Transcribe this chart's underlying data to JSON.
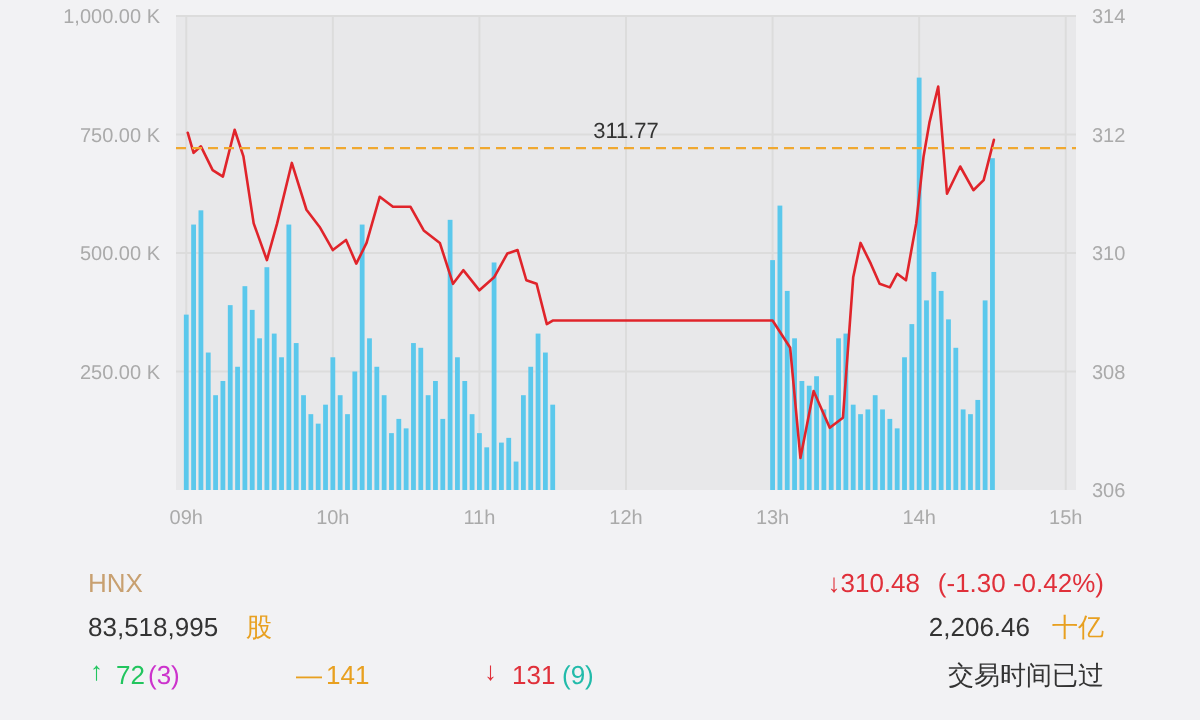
{
  "chart_data": {
    "type": "bar",
    "xlim": [
      8.93,
      15.07
    ],
    "xticks": [
      {
        "value": 9,
        "label": "09h"
      },
      {
        "value": 10,
        "label": "10h"
      },
      {
        "value": 11,
        "label": "11h"
      },
      {
        "value": 12,
        "label": "12h"
      },
      {
        "value": 13,
        "label": "13h"
      },
      {
        "value": 14,
        "label": "14h"
      },
      {
        "value": 15,
        "label": "15h"
      }
    ],
    "ylim": [
      0,
      1000
    ],
    "yticks": [
      {
        "value": 250,
        "label": "250.00 K"
      },
      {
        "value": 500,
        "label": "500.00 K"
      },
      {
        "value": 750,
        "label": "750.00 K"
      },
      {
        "value": 1000,
        "label": "1,000.00 K"
      }
    ],
    "y2lim": [
      306,
      314
    ],
    "y2ticks": [
      306,
      308,
      310,
      312,
      314
    ],
    "grid": true,
    "series": [
      {
        "color": "#5bc8ec",
        "x": [
          9.0,
          9.05,
          9.1,
          9.15,
          9.2,
          9.25,
          9.3,
          9.35,
          9.4,
          9.45,
          9.5,
          9.55,
          9.6,
          9.65,
          9.7,
          9.75,
          9.8,
          9.85,
          9.9,
          9.95,
          10.0,
          10.05,
          10.1,
          10.15,
          10.2,
          10.25,
          10.3,
          10.35,
          10.4,
          10.45,
          10.5,
          10.55,
          10.6,
          10.65,
          10.7,
          10.75,
          10.8,
          10.85,
          10.9,
          10.95,
          11.0,
          11.05,
          11.1,
          11.15,
          11.2,
          11.25,
          11.3,
          11.35,
          11.4,
          11.45,
          11.5,
          13.0,
          13.05,
          13.1,
          13.15,
          13.2,
          13.25,
          13.3,
          13.35,
          13.4,
          13.45,
          13.5,
          13.55,
          13.6,
          13.65,
          13.7,
          13.75,
          13.8,
          13.85,
          13.9,
          13.95,
          14.0,
          14.05,
          14.1,
          14.15,
          14.2,
          14.25,
          14.3,
          14.35,
          14.4,
          14.45,
          14.5
        ],
        "values": [
          370,
          560,
          590,
          290,
          200,
          230,
          390,
          260,
          430,
          380,
          320,
          470,
          330,
          280,
          560,
          310,
          200,
          160,
          140,
          180,
          280,
          200,
          160,
          250,
          560,
          320,
          260,
          200,
          120,
          150,
          130,
          310,
          300,
          200,
          230,
          150,
          570,
          280,
          230,
          160,
          120,
          90,
          480,
          100,
          110,
          60,
          200,
          260,
          330,
          290,
          180,
          485,
          600,
          420,
          320,
          230,
          220,
          240,
          170,
          200,
          320,
          330,
          180,
          160,
          170,
          200,
          170,
          150,
          130,
          280,
          350,
          870,
          400,
          460,
          420,
          360,
          300,
          170,
          160,
          190,
          400,
          700
        ]
      },
      {
        "type": "line",
        "axis": "y2",
        "color": "#e0242b",
        "x": [
          9.01,
          9.05,
          9.1,
          9.18,
          9.25,
          9.33,
          9.39,
          9.46,
          9.55,
          9.62,
          9.72,
          9.82,
          9.91,
          10.0,
          10.09,
          10.16,
          10.23,
          10.32,
          10.41,
          10.53,
          10.62,
          10.73,
          10.82,
          10.89,
          11.0,
          11.1,
          11.19,
          11.26,
          11.32,
          11.39,
          11.46,
          11.5,
          13.0,
          13.12,
          13.19,
          13.28,
          13.39,
          13.48,
          13.55,
          13.6,
          13.67,
          13.73,
          13.8,
          13.85,
          13.91,
          13.98,
          14.03,
          14.07,
          14.13,
          14.19,
          14.28,
          14.37,
          14.44,
          14.51
        ],
        "values": [
          312.03,
          311.69,
          311.8,
          311.4,
          311.29,
          312.08,
          311.63,
          310.5,
          309.88,
          310.5,
          311.52,
          310.73,
          310.44,
          310.05,
          310.22,
          309.82,
          310.17,
          310.95,
          310.78,
          310.78,
          310.38,
          310.17,
          309.48,
          309.71,
          309.37,
          309.59,
          309.99,
          310.05,
          309.54,
          309.48,
          308.8,
          308.86,
          308.86,
          308.4,
          306.54,
          307.67,
          307.05,
          307.22,
          309.59,
          310.17,
          309.82,
          309.48,
          309.42,
          309.65,
          309.54,
          310.5,
          311.63,
          312.2,
          312.81,
          311.0,
          311.46,
          311.06,
          311.23,
          311.91
        ]
      }
    ],
    "ref_lines": [
      {
        "axis": "y2",
        "value": 311.77,
        "label": "311.77",
        "color": "#f0a830",
        "line_style": "dashed"
      }
    ],
    "annotations": [
      "HNX",
      "↓310.48",
      "(-1.30  -0.42%)",
      "83,518,995",
      "股",
      "2,206.46",
      "十亿",
      "↑",
      "72",
      "(3)",
      "—",
      "141",
      "↓",
      "131",
      "(9)",
      "交易时间已过"
    ]
  }
}
